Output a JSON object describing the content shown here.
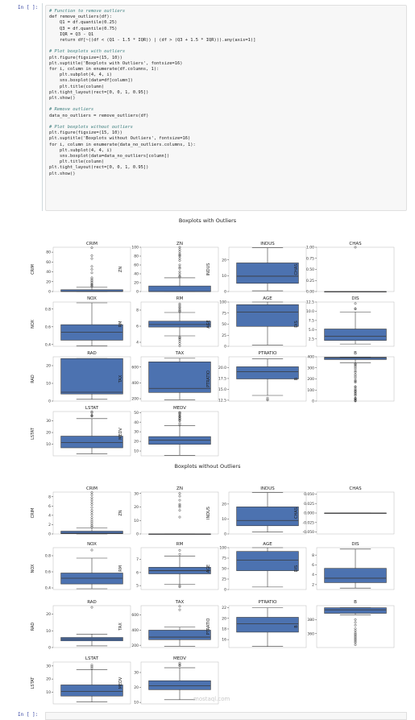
{
  "prompts": {
    "top": "In [ ]:",
    "bottom": "In [ ]:"
  },
  "code_lines": [
    {
      "t": "# Function to remove outliers",
      "c": "cm"
    },
    {
      "t": "def remove_outliers(df):",
      "c": ""
    },
    {
      "t": "    Q1 = df.quantile(0.25)",
      "c": ""
    },
    {
      "t": "    Q3 = df.quantile(0.75)",
      "c": ""
    },
    {
      "t": "    IQR = Q3 - Q1",
      "c": ""
    },
    {
      "t": "    return df[~((df < (Q1 - 1.5 * IQR)) | (df > (Q3 + 1.5 * IQR))).any(axis=1)]",
      "c": ""
    },
    {
      "t": "",
      "c": ""
    },
    {
      "t": "# Plot boxplots with outliers",
      "c": "cm"
    },
    {
      "t": "plt.figure(figsize=(15, 10))",
      "c": ""
    },
    {
      "t": "plt.suptitle('Boxplots with Outliers', fontsize=16)",
      "c": ""
    },
    {
      "t": "for i, column in enumerate(df.columns, 1):",
      "c": ""
    },
    {
      "t": "    plt.subplot(4, 4, i)",
      "c": ""
    },
    {
      "t": "    sns.boxplot(data=df[column])",
      "c": ""
    },
    {
      "t": "    plt.title(column)",
      "c": ""
    },
    {
      "t": "plt.tight_layout(rect=[0, 0, 1, 0.95])",
      "c": ""
    },
    {
      "t": "plt.show()",
      "c": ""
    },
    {
      "t": "",
      "c": ""
    },
    {
      "t": "# Remove outliers",
      "c": "cm"
    },
    {
      "t": "data_no_outliers = remove_outliers(df)",
      "c": ""
    },
    {
      "t": "",
      "c": ""
    },
    {
      "t": "# Plot boxplots without outliers",
      "c": "cm"
    },
    {
      "t": "plt.figure(figsize=(15, 10))",
      "c": ""
    },
    {
      "t": "plt.suptitle('Boxplots without Outliers', fontsize=16)",
      "c": ""
    },
    {
      "t": "for i, column in enumerate(data_no_outliers.columns, 1):",
      "c": ""
    },
    {
      "t": "    plt.subplot(4, 4, i)",
      "c": ""
    },
    {
      "t": "    sns.boxplot(data=data_no_outliers[column])",
      "c": ""
    },
    {
      "t": "    plt.title(column)",
      "c": ""
    },
    {
      "t": "plt.tight_layout(rect=[0, 0, 1, 0.95])",
      "c": ""
    },
    {
      "t": "plt.show()",
      "c": ""
    }
  ],
  "colors": {
    "box": "#4c72b0",
    "box_edge": "#3a3a3a",
    "axis": "#444444",
    "bg": "#ffffff"
  },
  "watermark": "mostaql.com",
  "chart_data": [
    {
      "type": "boxplot",
      "title": "Boxplots with Outliers",
      "panels": [
        {
          "name": "CRIM",
          "ylabel": "CRIM",
          "ylim": [
            0,
            90
          ],
          "ticks": [
            0,
            20,
            40,
            60,
            80
          ],
          "tick_labels": [
            "0",
            "20",
            "40",
            "60",
            "80"
          ],
          "whislo": 0,
          "q1": 0.1,
          "med": 0.3,
          "q3": 3.7,
          "whishi": 9,
          "fliers": [
            10,
            12,
            14,
            16,
            19,
            22,
            25,
            28,
            38,
            45,
            51,
            67,
            73,
            89
          ]
        },
        {
          "name": "ZN",
          "ylabel": "ZN",
          "ylim": [
            0,
            100
          ],
          "ticks": [
            0,
            20,
            40,
            60,
            80,
            100
          ],
          "tick_labels": [
            "0",
            "20",
            "40",
            "60",
            "80",
            "100"
          ],
          "whislo": 0,
          "q1": 0,
          "med": 0,
          "q3": 12.5,
          "whishi": 31,
          "fliers": [
            33,
            35,
            40,
            45,
            52,
            55,
            60,
            70,
            75,
            80,
            82,
            85,
            90,
            95,
            100
          ]
        },
        {
          "name": "INDUS",
          "ylabel": "INDUS",
          "ylim": [
            0,
            28
          ],
          "ticks": [
            0,
            10,
            20
          ],
          "tick_labels": [
            "0",
            "10",
            "20"
          ],
          "whislo": 0.5,
          "q1": 5.2,
          "med": 9.7,
          "q3": 18.1,
          "whishi": 27.7,
          "fliers": []
        },
        {
          "name": "CHAS",
          "ylabel": "CHAS",
          "ylim": [
            0,
            1
          ],
          "ticks": [
            0,
            0.25,
            0.5,
            0.75,
            1.0
          ],
          "tick_labels": [
            "0.00",
            "0.25",
            "0.50",
            "0.75",
            "1.00"
          ],
          "whislo": 0,
          "q1": 0,
          "med": 0,
          "q3": 0,
          "whishi": 0,
          "fliers": [
            1
          ]
        },
        {
          "name": "NOX",
          "ylabel": "NOX",
          "ylim": [
            0.38,
            0.88
          ],
          "ticks": [
            0.4,
            0.6,
            0.8
          ],
          "tick_labels": [
            "0.4",
            "0.6",
            "0.8"
          ],
          "whislo": 0.385,
          "q1": 0.449,
          "med": 0.538,
          "q3": 0.624,
          "whishi": 0.871,
          "fliers": []
        },
        {
          "name": "RM",
          "ylabel": "RM",
          "ylim": [
            3.5,
            9
          ],
          "ticks": [
            4,
            6,
            8
          ],
          "tick_labels": [
            "4",
            "6",
            "8"
          ],
          "whislo": 4.8,
          "q1": 5.89,
          "med": 6.21,
          "q3": 6.62,
          "whishi": 7.7,
          "fliers": [
            3.56,
            3.86,
            4.14,
            4.37,
            4.52,
            4.65,
            7.8,
            7.9,
            8.04,
            8.25,
            8.4,
            8.6,
            8.78
          ]
        },
        {
          "name": "AGE",
          "ylabel": "AGE",
          "ylim": [
            0,
            100
          ],
          "ticks": [
            0,
            25,
            50,
            75,
            100
          ],
          "tick_labels": [
            "0",
            "25",
            "50",
            "75",
            "100"
          ],
          "whislo": 2.9,
          "q1": 45,
          "med": 77.5,
          "q3": 94,
          "whishi": 100,
          "fliers": []
        },
        {
          "name": "DIS",
          "ylabel": "DIS",
          "ylim": [
            0.5,
            12.5
          ],
          "ticks": [
            2.5,
            5.0,
            7.5,
            10.0,
            12.5
          ],
          "tick_labels": [
            "2.5",
            "5.0",
            "7.5",
            "10.0",
            "12.5"
          ],
          "whislo": 1.13,
          "q1": 2.1,
          "med": 3.2,
          "q3": 5.19,
          "whishi": 9.8,
          "fliers": [
            10.6,
            10.7,
            12.1
          ]
        },
        {
          "name": "RAD",
          "ylabel": "RAD",
          "ylim": [
            0,
            25
          ],
          "ticks": [
            0,
            10,
            20
          ],
          "tick_labels": [
            "0",
            "10",
            "20"
          ],
          "whislo": 1,
          "q1": 4,
          "med": 5,
          "q3": 24,
          "whishi": 24,
          "fliers": []
        },
        {
          "name": "TAX",
          "ylabel": "TAX",
          "ylim": [
            170,
            730
          ],
          "ticks": [
            200,
            400,
            600
          ],
          "tick_labels": [
            "200",
            "400",
            "600"
          ],
          "whislo": 187,
          "q1": 279,
          "med": 330,
          "q3": 666,
          "whishi": 711,
          "fliers": []
        },
        {
          "name": "PTRATIO",
          "ylabel": "PTRATIO",
          "ylim": [
            12.3,
            22.5
          ],
          "ticks": [
            12.5,
            15.0,
            17.5,
            20.0
          ],
          "tick_labels": [
            "12.5",
            "15.0",
            "17.5",
            "20.0"
          ],
          "whislo": 13.6,
          "q1": 17.4,
          "med": 19.05,
          "q3": 20.2,
          "whishi": 22,
          "fliers": [
            12.6,
            12.6,
            13.0
          ]
        },
        {
          "name": "B",
          "ylabel": "B",
          "ylim": [
            0,
            400
          ],
          "ticks": [
            0,
            100,
            200,
            300,
            400
          ],
          "tick_labels": [
            "0",
            "100",
            "200",
            "300",
            "400"
          ],
          "whislo": 345,
          "q1": 375,
          "med": 391,
          "q3": 396,
          "whishi": 397,
          "fliers": [
            0.3,
            3,
            7,
            16,
            22,
            28,
            50,
            60,
            70,
            82,
            88,
            97,
            109,
            125,
            131,
            169,
            178,
            189,
            210,
            225,
            240,
            260,
            272,
            290,
            305,
            318,
            330,
            338
          ]
        },
        {
          "name": "LSTAT",
          "ylabel": "LSTAT",
          "ylim": [
            0,
            38
          ],
          "ticks": [
            10,
            20,
            30
          ],
          "tick_labels": [
            "10",
            "20",
            "30"
          ],
          "whislo": 1.7,
          "q1": 6.9,
          "med": 11.4,
          "q3": 16.9,
          "whishi": 31.9,
          "fliers": [
            34,
            34.4,
            34.8,
            36.98,
            37.97
          ]
        },
        {
          "name": "MEDV",
          "ylabel": "MEDV",
          "ylim": [
            5,
            51
          ],
          "ticks": [
            10,
            20,
            30,
            40,
            50
          ],
          "tick_labels": [
            "10",
            "20",
            "30",
            "40",
            "50"
          ],
          "whislo": 5.6,
          "q1": 17,
          "med": 21.2,
          "q3": 25,
          "whishi": 36.5,
          "fliers": [
            37,
            38.7,
            41.3,
            42.3,
            43.5,
            44,
            45.4,
            46,
            46.7,
            48.3,
            48.8,
            50,
            50,
            50
          ]
        }
      ]
    },
    {
      "type": "boxplot",
      "title": "Boxplots without Outliers",
      "panels": [
        {
          "name": "CRIM",
          "ylabel": "CRIM",
          "ylim": [
            0,
            9
          ],
          "ticks": [
            0,
            2,
            4,
            6,
            8
          ],
          "tick_labels": [
            "0",
            "2",
            "4",
            "6",
            "8"
          ],
          "whislo": 0,
          "q1": 0.06,
          "med": 0.17,
          "q3": 0.6,
          "whishi": 1.3,
          "fliers": [
            1.5,
            1.8,
            2.2,
            2.6,
            3.0,
            3.5,
            4.1,
            4.6,
            5.1,
            5.7,
            6.3,
            6.8,
            7.3,
            7.8,
            8.4,
            8.9
          ]
        },
        {
          "name": "ZN",
          "ylabel": "ZN",
          "ylim": [
            0,
            31
          ],
          "ticks": [
            0,
            10,
            20,
            30
          ],
          "tick_labels": [
            "0",
            "10",
            "20",
            "30"
          ],
          "whislo": 0,
          "q1": 0,
          "med": 0,
          "q3": 0,
          "whishi": 0,
          "fliers": [
            12.5,
            17.5,
            20,
            21,
            22,
            25,
            28,
            30
          ]
        },
        {
          "name": "INDUS",
          "ylabel": "INDUS",
          "ylim": [
            0,
            28
          ],
          "ticks": [
            0,
            10,
            20
          ],
          "tick_labels": [
            "0",
            "10",
            "20"
          ],
          "whislo": 1.3,
          "q1": 5.5,
          "med": 9.0,
          "q3": 18.1,
          "whishi": 27.7,
          "fliers": []
        },
        {
          "name": "CHAS",
          "ylabel": "CHAS",
          "ylim": [
            -0.055,
            0.055
          ],
          "ticks": [
            -0.05,
            -0.025,
            0,
            0.025,
            0.05
          ],
          "tick_labels": [
            "-0.050",
            "-0.025",
            "0.000",
            "0.025",
            "0.050"
          ],
          "whislo": 0,
          "q1": 0,
          "med": 0,
          "q3": 0,
          "whishi": 0,
          "fliers": []
        },
        {
          "name": "NOX",
          "ylabel": "NOX",
          "ylim": [
            0.38,
            0.9
          ],
          "ticks": [
            0.4,
            0.6,
            0.8
          ],
          "tick_labels": [
            "0.4",
            "0.6",
            "0.8"
          ],
          "whislo": 0.39,
          "q1": 0.449,
          "med": 0.52,
          "q3": 0.585,
          "whishi": 0.77,
          "fliers": [
            0.87
          ]
        },
        {
          "name": "RM",
          "ylabel": "RM",
          "ylim": [
            4.7,
            7.9
          ],
          "ticks": [
            5,
            6,
            7
          ],
          "tick_labels": [
            "5",
            "6",
            "7"
          ],
          "whislo": 5.1,
          "q1": 5.9,
          "med": 6.15,
          "q3": 6.4,
          "whishi": 7.25,
          "fliers": [
            4.9,
            5.0,
            7.4,
            7.7
          ]
        },
        {
          "name": "AGE",
          "ylabel": "AGE",
          "ylim": [
            0,
            100
          ],
          "ticks": [
            0,
            25,
            50,
            75,
            100
          ],
          "tick_labels": [
            "0",
            "25",
            "50",
            "75",
            "100"
          ],
          "whislo": 6,
          "q1": 45,
          "med": 70,
          "q3": 91,
          "whishi": 100,
          "fliers": []
        },
        {
          "name": "DIS",
          "ylabel": "DIS",
          "ylim": [
            1,
            9.5
          ],
          "ticks": [
            2,
            4,
            6,
            8
          ],
          "tick_labels": [
            "2",
            "4",
            "6",
            "8"
          ],
          "whislo": 1.3,
          "q1": 2.4,
          "med": 3.3,
          "q3": 5.3,
          "whishi": 9.2,
          "fliers": []
        },
        {
          "name": "RAD",
          "ylabel": "RAD",
          "ylim": [
            0,
            25
          ],
          "ticks": [
            0,
            10,
            20
          ],
          "tick_labels": [
            "0",
            "10",
            "20"
          ],
          "whislo": 1,
          "q1": 4,
          "med": 5,
          "q3": 6,
          "whishi": 8,
          "fliers": [
            24
          ]
        },
        {
          "name": "TAX",
          "ylabel": "TAX",
          "ylim": [
            170,
            720
          ],
          "ticks": [
            200,
            400,
            600
          ],
          "tick_labels": [
            "200",
            "400",
            "600"
          ],
          "whislo": 188,
          "q1": 273,
          "med": 307,
          "q3": 398,
          "whishi": 437,
          "fliers": [
            666,
            711
          ]
        },
        {
          "name": "PTRATIO",
          "ylabel": "PTRATIO",
          "ylim": [
            14.5,
            22.4
          ],
          "ticks": [
            16,
            18,
            20,
            22
          ],
          "tick_labels": [
            "16",
            "18",
            "20",
            "22"
          ],
          "whislo": 14.7,
          "q1": 17.4,
          "med": 19.0,
          "q3": 20.2,
          "whishi": 22,
          "fliers": []
        },
        {
          "name": "B",
          "ylabel": "B",
          "ylim": [
            340,
            400
          ],
          "ticks": [
            360,
            380
          ],
          "tick_labels": [
            "360",
            "380"
          ],
          "whislo": 387,
          "q1": 389,
          "med": 394,
          "q3": 397,
          "whishi": 397,
          "fliers": [
            344,
            347,
            349,
            351,
            353,
            355,
            357,
            359,
            361,
            364,
            367,
            372,
            376,
            380
          ]
        },
        {
          "name": "LSTAT",
          "ylabel": "LSTAT",
          "ylim": [
            1,
            33
          ],
          "ticks": [
            10,
            20,
            30
          ],
          "tick_labels": [
            "10",
            "20",
            "30"
          ],
          "whislo": 2.5,
          "q1": 7,
          "med": 10.6,
          "q3": 15.5,
          "whishi": 27.3,
          "fliers": [
            28.3,
            29.5,
            30.6
          ]
        },
        {
          "name": "MEDV",
          "ylabel": "MEDV",
          "ylim": [
            9,
            37
          ],
          "ticks": [
            10,
            20,
            30
          ],
          "tick_labels": [
            "10",
            "20",
            "30"
          ],
          "whislo": 11.8,
          "q1": 18.5,
          "med": 21.1,
          "q3": 24.5,
          "whishi": 33.2,
          "fliers": [
            34.5,
            35.1,
            36.2
          ]
        }
      ]
    }
  ]
}
